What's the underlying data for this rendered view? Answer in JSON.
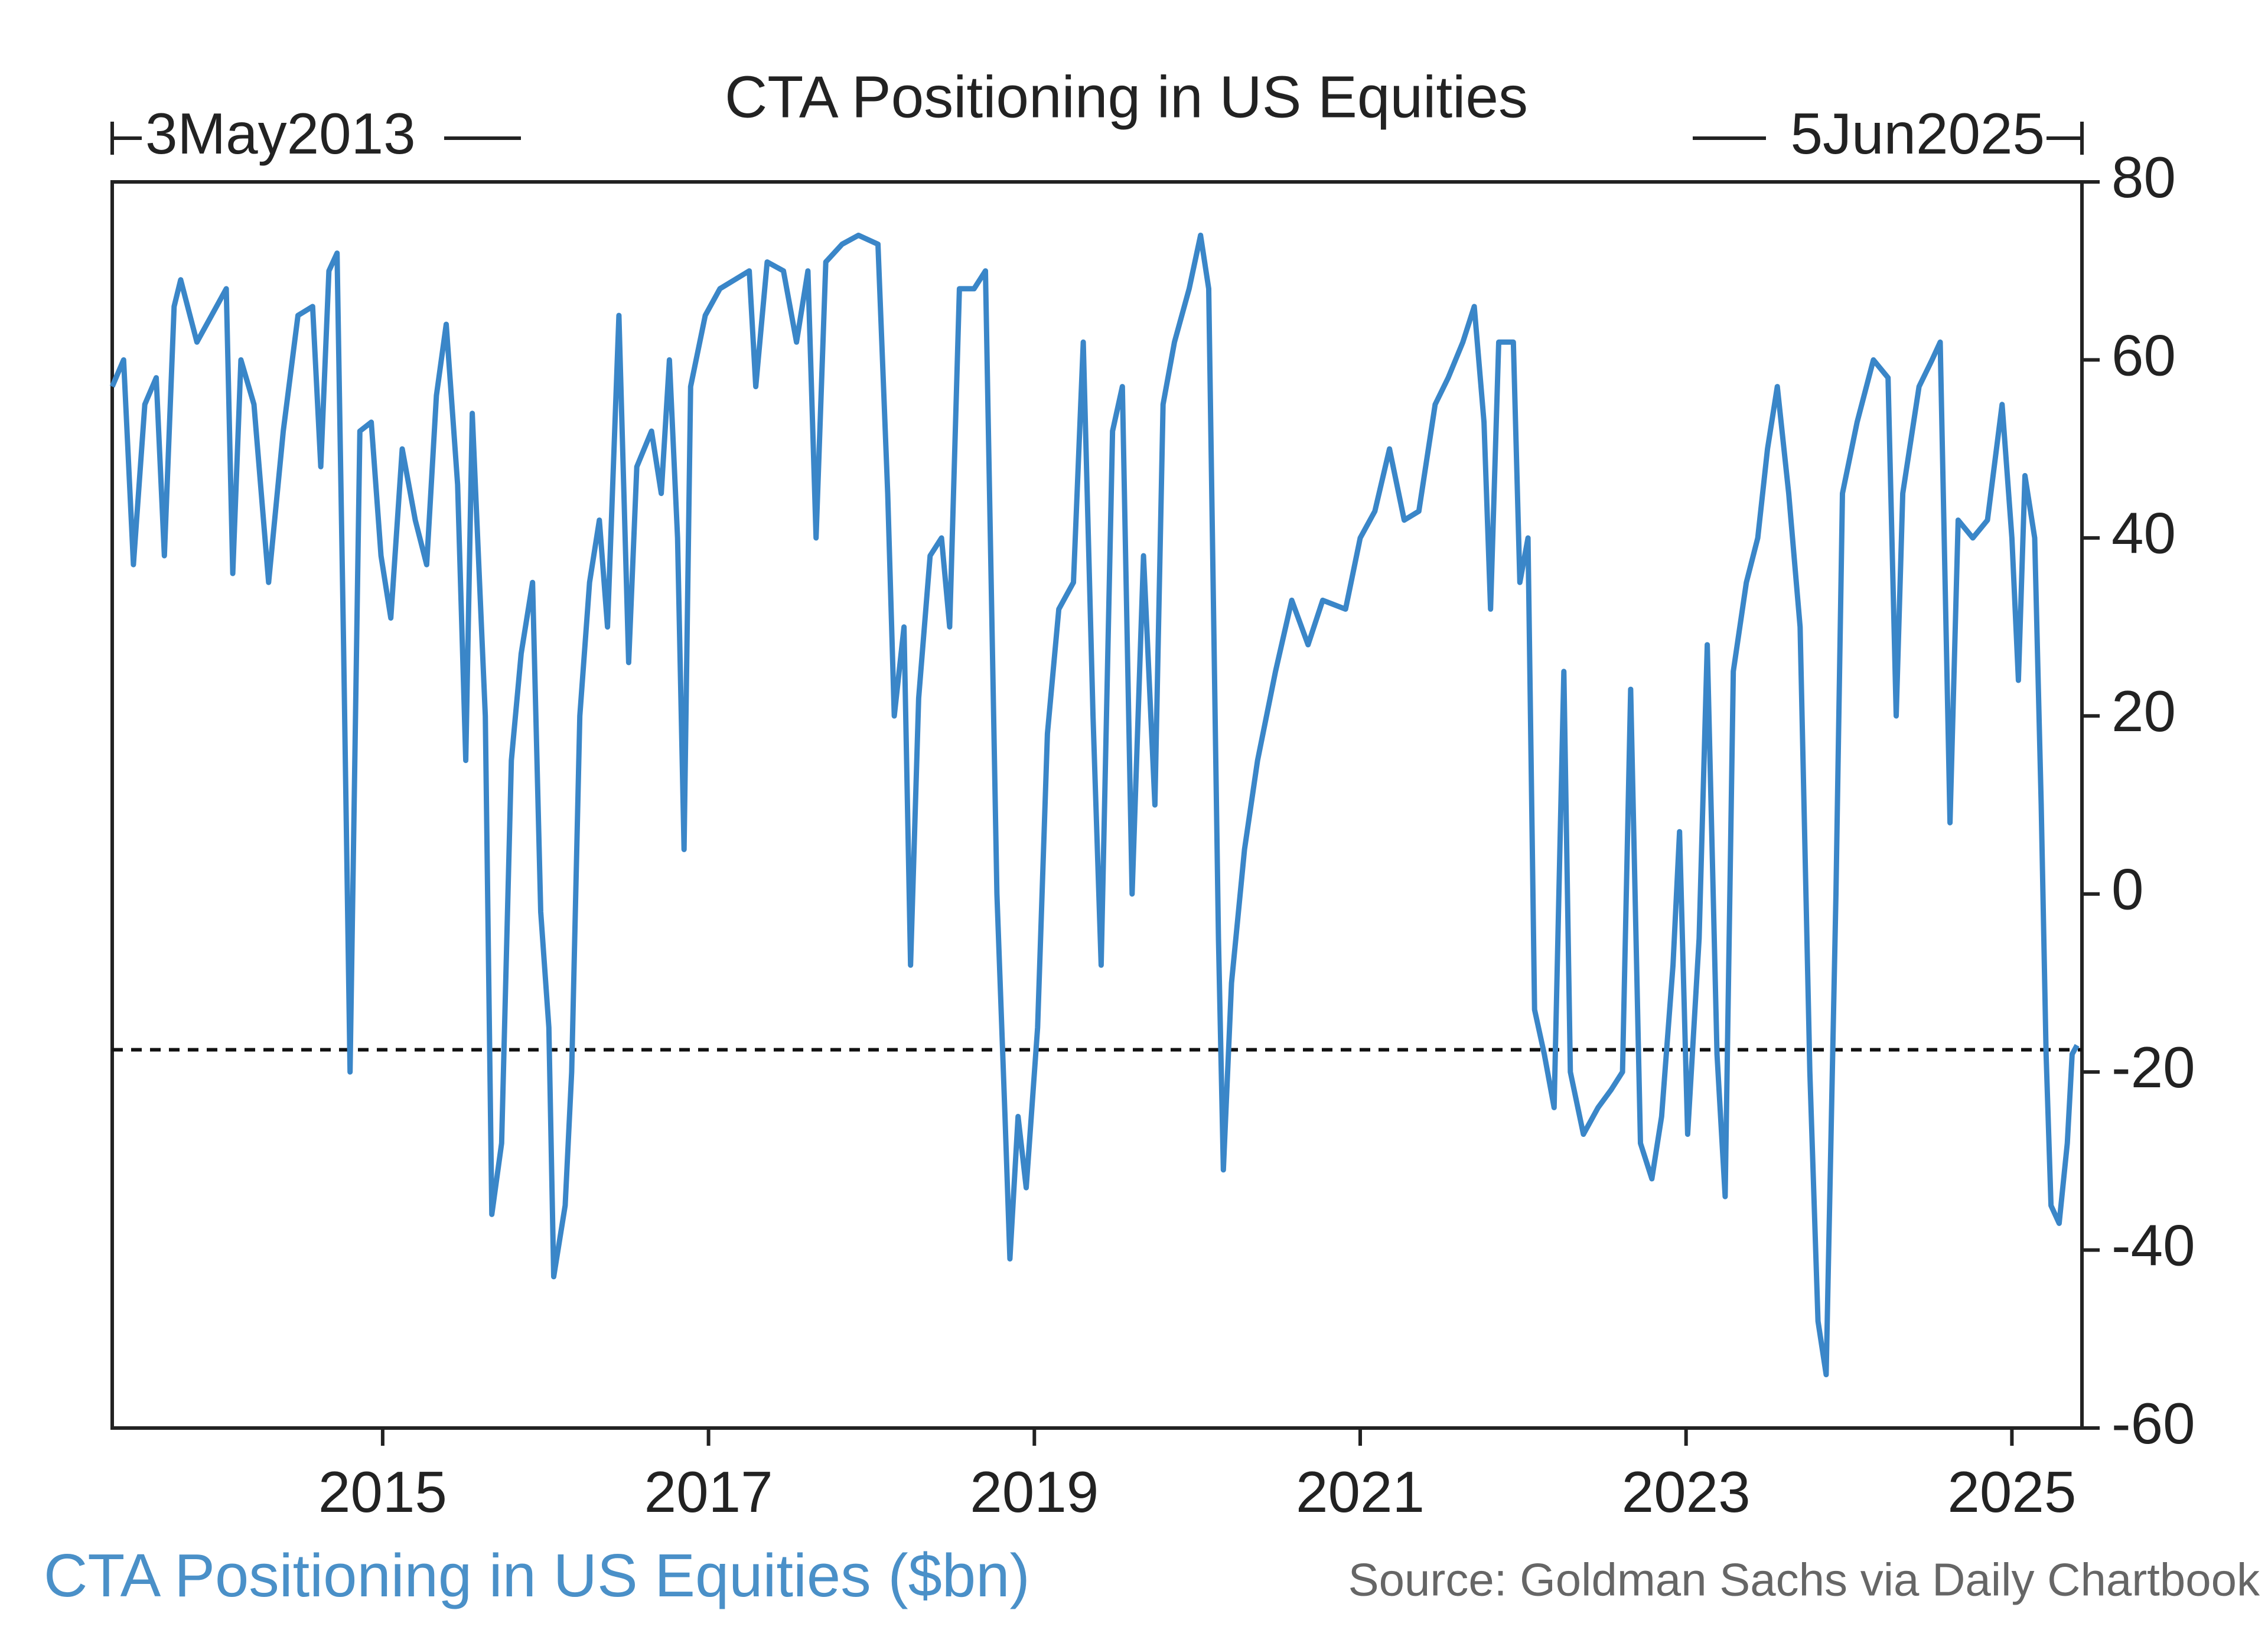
{
  "chart_data": {
    "type": "line",
    "title": "CTA Positioning in US Equities",
    "subtitle": "CTA Positioning in US Equities ($bn)",
    "source": "Source: Goldman Sachs via Daily Chartbook",
    "start_label": "3May2013",
    "end_label": "5Jun2025",
    "color": "#3a86c8",
    "reference_line": -17.5,
    "xlim": [
      2013.34,
      2025.43
    ],
    "xticks": [
      2015,
      2017,
      2019,
      2021,
      2023,
      2025
    ],
    "ylim": [
      -60,
      80
    ],
    "yticks": [
      -60,
      -40,
      -20,
      0,
      20,
      40,
      60,
      80
    ],
    "x": [
      2013.34,
      2013.41,
      2013.47,
      2013.54,
      2013.61,
      2013.66,
      2013.72,
      2013.76,
      2013.86,
      2013.95,
      2014.04,
      2014.08,
      2014.13,
      2014.21,
      2014.3,
      2014.39,
      2014.48,
      2014.57,
      2014.62,
      2014.67,
      2014.72,
      2014.76,
      2014.8,
      2014.86,
      2014.93,
      2014.99,
      2015.05,
      2015.12,
      2015.2,
      2015.27,
      2015.33,
      2015.39,
      2015.46,
      2015.51,
      2015.55,
      2015.63,
      2015.67,
      2015.73,
      2015.79,
      2015.85,
      2015.92,
      2015.97,
      2016.02,
      2016.05,
      2016.12,
      2016.16,
      2016.21,
      2016.27,
      2016.33,
      2016.38,
      2016.45,
      2016.51,
      2016.56,
      2016.65,
      2016.71,
      2016.76,
      2016.81,
      2016.85,
      2016.89,
      2016.98,
      2017.07,
      2017.16,
      2017.25,
      2017.29,
      2017.36,
      2017.46,
      2017.54,
      2017.61,
      2017.66,
      2017.72,
      2017.82,
      2017.92,
      2018.04,
      2018.1,
      2018.14,
      2018.2,
      2018.24,
      2018.29,
      2018.36,
      2018.43,
      2018.48,
      2018.54,
      2018.63,
      2018.7,
      2018.77,
      2018.82,
      2018.85,
      2018.9,
      2018.95,
      2019.02,
      2019.08,
      2019.15,
      2019.24,
      2019.3,
      2019.36,
      2019.41,
      2019.48,
      2019.54,
      2019.6,
      2019.67,
      2019.74,
      2019.79,
      2019.86,
      2019.95,
      2020.02,
      2020.07,
      2020.13,
      2020.16,
      2020.21,
      2020.29,
      2020.37,
      2020.48,
      2020.58,
      2020.68,
      2020.77,
      2020.91,
      2021.0,
      2021.09,
      2021.18,
      2021.27,
      2021.36,
      2021.46,
      2021.54,
      2021.63,
      2021.7,
      2021.76,
      2021.8,
      2021.85,
      2021.94,
      2021.98,
      2022.03,
      2022.07,
      2022.13,
      2022.19,
      2022.25,
      2022.29,
      2022.37,
      2022.46,
      2022.54,
      2022.61,
      2022.66,
      2022.72,
      2022.79,
      2022.85,
      2022.92,
      2022.96,
      2023.01,
      2023.08,
      2023.13,
      2023.19,
      2023.24,
      2023.29,
      2023.37,
      2023.44,
      2023.5,
      2023.56,
      2023.63,
      2023.7,
      2023.76,
      2023.81,
      2023.86,
      2023.92,
      2023.96,
      2024.05,
      2024.15,
      2024.24,
      2024.29,
      2024.33,
      2024.43,
      2024.51,
      2024.56,
      2024.62,
      2024.67,
      2024.76,
      2024.85,
      2024.94,
      2025.0,
      2025.04,
      2025.08,
      2025.14,
      2025.18,
      2025.21,
      2025.24,
      2025.29,
      2025.34,
      2025.37,
      2025.4
    ],
    "values": [
      57,
      60,
      37,
      55,
      58,
      38,
      66,
      69,
      62,
      65,
      68,
      36,
      60,
      55,
      35,
      52,
      65,
      66,
      48,
      70,
      72,
      28,
      -20,
      52,
      53,
      38,
      31,
      50,
      42,
      37,
      56,
      64,
      46,
      15,
      54,
      20,
      -36,
      -28,
      15,
      27,
      35,
      -2,
      -15,
      -43,
      -35,
      -20,
      20,
      35,
      42,
      30,
      65,
      26,
      48,
      52,
      45,
      60,
      40,
      5,
      57,
      65,
      68,
      69,
      70,
      57,
      71,
      70,
      62,
      70,
      40,
      71,
      73,
      74,
      73,
      45,
      20,
      30,
      -8,
      22,
      38,
      40,
      30,
      68,
      68,
      70,
      0,
      -25,
      -41,
      -25,
      -33,
      -15,
      18,
      32,
      35,
      62,
      20,
      -8,
      52,
      57,
      0,
      38,
      10,
      55,
      62,
      68,
      74,
      68,
      -5,
      -31,
      -10,
      5,
      15,
      25,
      33,
      28,
      33,
      32,
      40,
      43,
      50,
      42,
      43,
      55,
      58,
      62,
      66,
      53,
      32,
      62,
      62,
      35,
      40,
      -13,
      -18,
      -24,
      25,
      -20,
      -27,
      -24,
      -22,
      -20,
      23,
      -28,
      -32,
      -25,
      -8,
      7,
      -27,
      -5,
      28,
      -18,
      -34,
      25,
      35,
      40,
      50,
      57,
      45,
      30,
      -20,
      -48,
      -54,
      0,
      45,
      53,
      60,
      58,
      20,
      45,
      57,
      60,
      62,
      8,
      42,
      40,
      42,
      55,
      40,
      24,
      47,
      40,
      10,
      -18,
      -35,
      -37,
      -28,
      -18,
      -17
    ]
  }
}
